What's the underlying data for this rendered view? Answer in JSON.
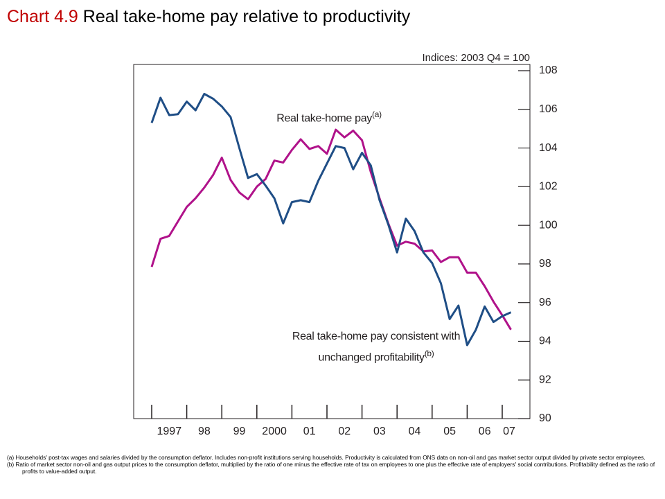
{
  "chart_data": {
    "type": "line",
    "chart_label": "Chart 4.9",
    "title": "Real take-home pay relative to productivity",
    "unit_label": "Indices: 2003 Q4 = 100",
    "categories": [
      "1997",
      null,
      null,
      null,
      "98",
      null,
      null,
      null,
      "99",
      null,
      null,
      null,
      "2000",
      null,
      null,
      null,
      "01",
      null,
      null,
      null,
      "02",
      null,
      null,
      null,
      "03",
      null,
      null,
      null,
      "04",
      null,
      null,
      null,
      "05",
      null,
      null,
      null,
      "06",
      null,
      null,
      null,
      "07",
      null
    ],
    "series": [
      {
        "name": "Real take-home pay",
        "note": "(a)",
        "color": "#b0128a",
        "values": [
          97.85,
          99.3,
          99.45,
          100.2,
          100.95,
          101.4,
          101.95,
          102.6,
          103.5,
          102.35,
          101.7,
          101.35,
          102.0,
          102.4,
          103.35,
          103.25,
          103.9,
          104.45,
          103.95,
          104.1,
          103.7,
          104.95,
          104.55,
          104.9,
          104.4,
          102.75,
          101.4,
          100.1,
          98.95,
          99.15,
          99.05,
          98.65,
          98.7,
          98.1,
          98.35,
          98.35,
          97.55,
          97.55,
          96.85,
          96.05,
          95.35,
          94.6
        ]
      },
      {
        "name": "Real take-home pay consistent with unchanged profitability",
        "note": "(b)",
        "color": "#1f4e86",
        "values": [
          105.3,
          106.6,
          105.7,
          105.75,
          106.4,
          105.95,
          106.8,
          106.55,
          106.15,
          105.6,
          104.0,
          102.45,
          102.65,
          102.05,
          101.4,
          100.1,
          101.2,
          101.3,
          101.2,
          102.3,
          103.2,
          104.1,
          104.0,
          102.9,
          103.75,
          103.1,
          101.3,
          100.05,
          98.6,
          100.35,
          99.7,
          98.6,
          98.05,
          97.0,
          95.15,
          95.85,
          93.8,
          94.6,
          95.8,
          95.0,
          95.3,
          95.5
        ]
      }
    ],
    "ylim": [
      90,
      108
    ],
    "yticks": [
      90,
      92,
      94,
      96,
      98,
      100,
      102,
      104,
      106,
      108
    ],
    "footnotes": [
      "(a)  Households' post-tax wages and salaries divided by the consumption deflator.  Includes non-profit institutions serving households.  Productivity is calculated from ONS data on non-oil and gas market sector output divided by private sector employees.",
      "(b)  Ratio of market sector non-oil and gas output prices to the consumption deflator, multiplied by the ratio of one minus the effective rate of tax on employees to one plus the effective rate of employers' social contributions.  Profitability defined as the ratio of profits to value-added output."
    ]
  }
}
